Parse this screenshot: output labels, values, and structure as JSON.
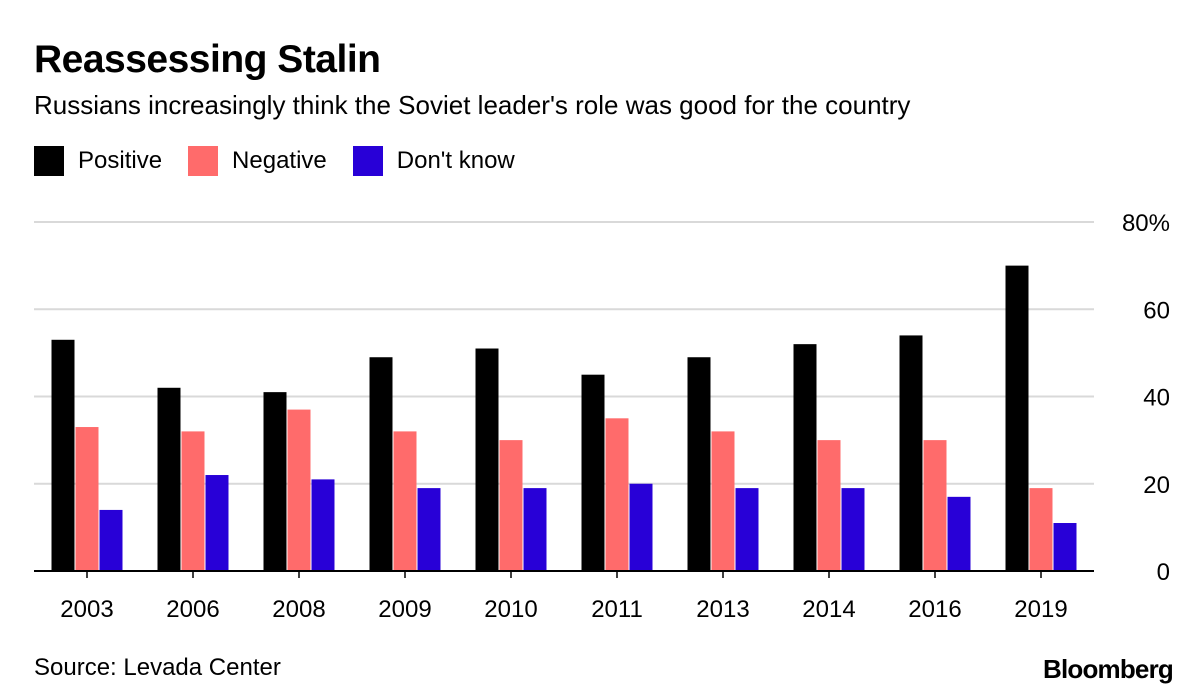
{
  "title": "Reassessing Stalin",
  "subtitle": "Russians increasingly think the Soviet leader's role was good for the country",
  "source": "Source: Levada Center",
  "brand": "Bloomberg",
  "legend": [
    {
      "label": "Positive",
      "color": "#000000"
    },
    {
      "label": "Negative",
      "color": "#ff6b6b"
    },
    {
      "label": "Don't know",
      "color": "#2800d7"
    }
  ],
  "chart_data": {
    "type": "bar",
    "title": "Reassessing Stalin",
    "xlabel": "",
    "ylabel": "",
    "ylim": [
      0,
      80
    ],
    "y_ticks": [
      0,
      20,
      40,
      60,
      80
    ],
    "y_tick_labels": [
      "0",
      "20",
      "40",
      "60",
      "80%"
    ],
    "grid": true,
    "legend_position": "top-left",
    "categories": [
      "2003",
      "2006",
      "2008",
      "2009",
      "2010",
      "2011",
      "2013",
      "2014",
      "2016",
      "2019"
    ],
    "series": [
      {
        "name": "Positive",
        "color": "#000000",
        "values": [
          53,
          42,
          41,
          49,
          51,
          45,
          49,
          52,
          54,
          70
        ]
      },
      {
        "name": "Negative",
        "color": "#ff6b6b",
        "values": [
          33,
          32,
          37,
          32,
          30,
          35,
          32,
          30,
          30,
          19
        ]
      },
      {
        "name": "Don't know",
        "color": "#2800d7",
        "values": [
          14,
          22,
          21,
          19,
          19,
          20,
          19,
          19,
          17,
          11
        ]
      }
    ]
  }
}
